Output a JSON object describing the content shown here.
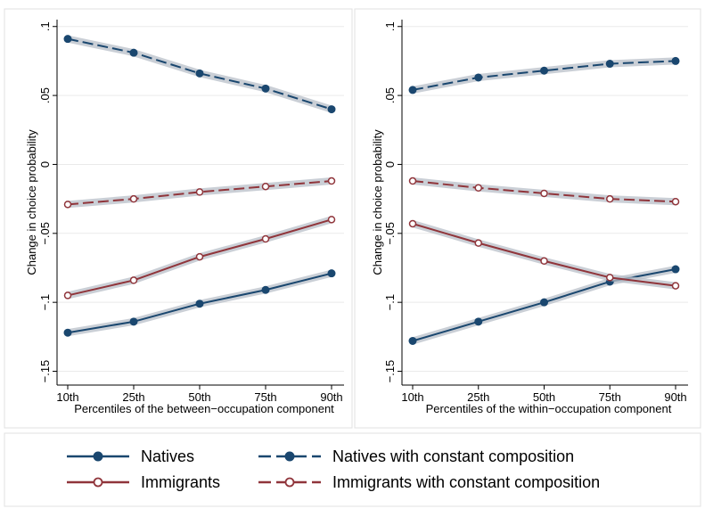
{
  "colors": {
    "background": "#ffffff",
    "panel_border": "#e0e0e0",
    "grid": "#eaeaea",
    "axis": "#000000",
    "band": "#b8bfc8",
    "natives": "#1a476f",
    "immigrants": "#90353b"
  },
  "legend": {
    "position": "bottom",
    "entries": [
      {
        "key": "natives",
        "label": "Natives",
        "series": "natives",
        "dashed": false,
        "marker": "filled-circle"
      },
      {
        "key": "natives_const",
        "label": "Natives with constant composition",
        "series": "natives",
        "dashed": true,
        "marker": "filled-circle"
      },
      {
        "key": "immigrants",
        "label": "Immigrants",
        "series": "immigrants",
        "dashed": false,
        "marker": "hollow-circle"
      },
      {
        "key": "immigrants_const",
        "label": "Immigrants with constant composition",
        "series": "immigrants",
        "dashed": true,
        "marker": "hollow-circle"
      }
    ]
  },
  "chart_data": [
    {
      "type": "line",
      "xlabel": "Percentiles of the between−occupation component",
      "ylabel": "Change in choice probability",
      "categories": [
        "10th",
        "25th",
        "50th",
        "75th",
        "90th"
      ],
      "ylim": [
        -0.16,
        0.105
      ],
      "yticks": [
        0.1,
        0.05,
        0,
        -0.05,
        -0.1,
        -0.15
      ],
      "ytick_labels": [
        ".1",
        ".05",
        "0",
        "−.05",
        "−.1",
        "−.15"
      ],
      "grid": true,
      "series": [
        {
          "name": "Natives",
          "key": "natives",
          "values": [
            -0.122,
            -0.114,
            -0.101,
            -0.091,
            -0.079
          ]
        },
        {
          "name": "Natives with constant composition",
          "key": "natives_const",
          "values": [
            0.091,
            0.081,
            0.066,
            0.055,
            0.04
          ]
        },
        {
          "name": "Immigrants",
          "key": "immigrants",
          "values": [
            -0.095,
            -0.084,
            -0.067,
            -0.054,
            -0.04
          ]
        },
        {
          "name": "Immigrants with constant composition",
          "key": "immigrants_const",
          "values": [
            -0.029,
            -0.025,
            -0.02,
            -0.016,
            -0.012
          ]
        }
      ]
    },
    {
      "type": "line",
      "xlabel": "Percentiles of the within−occupation component",
      "ylabel": "Change in choice probability",
      "categories": [
        "10th",
        "25th",
        "50th",
        "75th",
        "90th"
      ],
      "ylim": [
        -0.16,
        0.105
      ],
      "yticks": [
        0.1,
        0.05,
        0,
        -0.05,
        -0.1,
        -0.15
      ],
      "ytick_labels": [
        ".1",
        ".05",
        "0",
        "−.05",
        "−.1",
        "−.15"
      ],
      "grid": true,
      "series": [
        {
          "name": "Natives",
          "key": "natives",
          "values": [
            -0.128,
            -0.114,
            -0.1,
            -0.085,
            -0.076
          ]
        },
        {
          "name": "Natives with constant composition",
          "key": "natives_const",
          "values": [
            0.054,
            0.063,
            0.068,
            0.073,
            0.075
          ]
        },
        {
          "name": "Immigrants",
          "key": "immigrants",
          "values": [
            -0.043,
            -0.057,
            -0.07,
            -0.082,
            -0.088
          ]
        },
        {
          "name": "Immigrants with constant composition",
          "key": "immigrants_const",
          "values": [
            -0.012,
            -0.017,
            -0.021,
            -0.025,
            -0.027
          ]
        }
      ]
    }
  ]
}
